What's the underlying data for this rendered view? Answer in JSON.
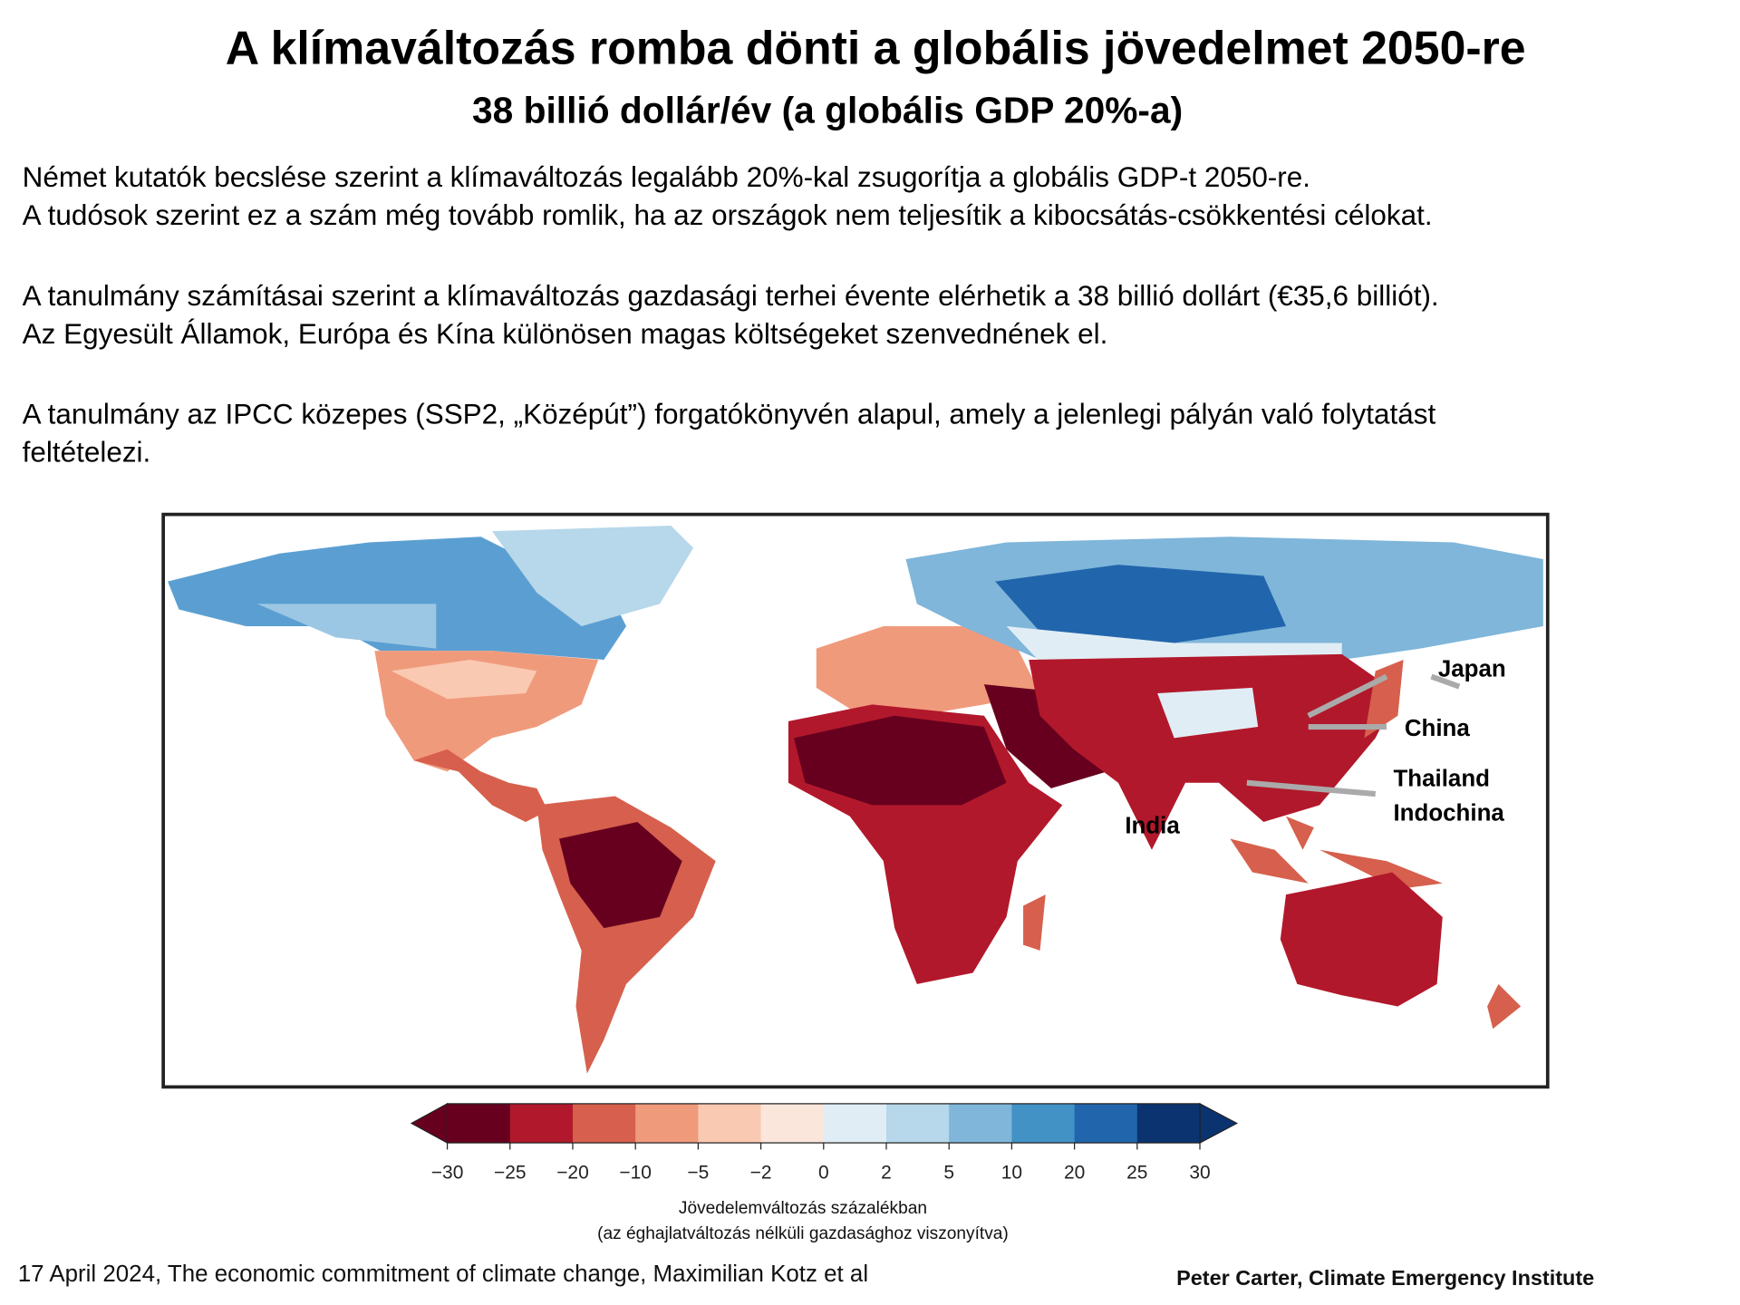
{
  "header": {
    "title": "A klímaváltozás romba dönti a globális jövedelmet 2050-re",
    "subtitle": "38 billió dollár/év (a globális GDP 20%-a)"
  },
  "body": {
    "paragraphs": [
      [
        "Német kutatók becslése szerint a klímaváltozás legalább 20%-kal zsugorítja a globális GDP-t 2050-re.",
        "A tudósok szerint ez a szám még tovább romlik, ha az országok nem teljesítik a kibocsátás-csökkentési célokat."
      ],
      [
        "A tanulmány számításai szerint a klímaváltozás gazdasági terhei évente elérhetik a 38 billió dollárt (€35,6 billiót).",
        "Az Egyesült Államok, Európa és Kína különösen magas költségeket szenvednének el."
      ],
      [
        "A tanulmány az IPCC közepes (SSP2, „Középút”) forgatókönyvén alapul, amely a jelenlegi pályán való folytatást",
        "feltételezi."
      ]
    ]
  },
  "map": {
    "labels": [
      "Japan",
      "China",
      "Thailand",
      "Indochina",
      "India"
    ],
    "colorbar": {
      "colors": [
        "#67001f",
        "#b2182b",
        "#d6604d",
        "#f09a7c",
        "#fac9b2",
        "#fbe6dc",
        "#e1edf4",
        "#b7d7ea",
        "#7fb6da",
        "#4292c6",
        "#2166ac",
        "#0a3370"
      ],
      "ticks": [
        {
          "value": -30,
          "label": "−30"
        },
        {
          "value": -25,
          "label": "−25"
        },
        {
          "value": -20,
          "label": "−20"
        },
        {
          "value": -10,
          "label": "−10"
        },
        {
          "value": -5,
          "label": "−5"
        },
        {
          "value": -2,
          "label": "−2"
        },
        0,
        2,
        5,
        10,
        20,
        25,
        30
      ],
      "caption": [
        "Jövedelemváltozás százalékban",
        "(az éghajlatváltozás nélküli gazdasághoz viszonyítva)"
      ]
    }
  },
  "footer": {
    "source": "17 April 2024, The economic commitment of climate change, Maximilian Kotz et al",
    "credit": "Peter Carter,  Climate Emergency Institute"
  }
}
